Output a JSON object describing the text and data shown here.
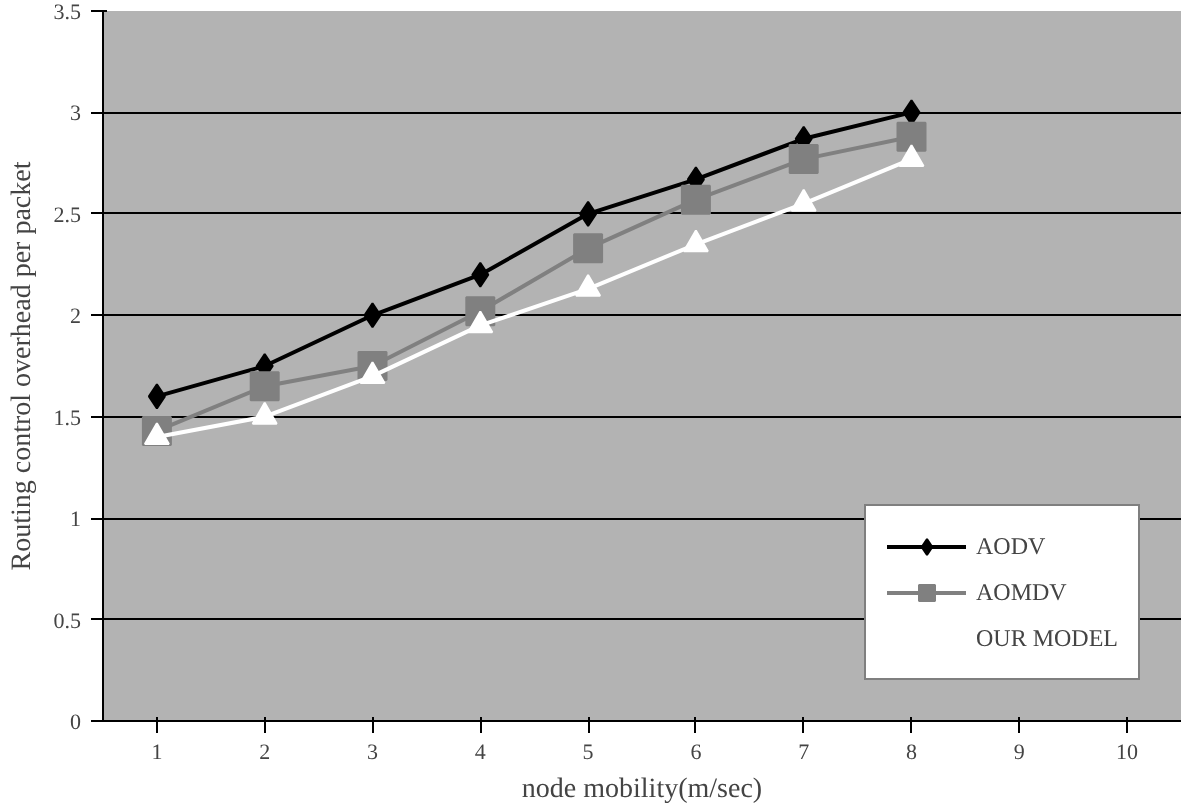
{
  "chart_data": {
    "type": "line",
    "xlabel": "node mobility(m/sec)",
    "ylabel": "Routing control overhead per packet",
    "categories": [
      "1",
      "2",
      "3",
      "4",
      "5",
      "6",
      "7",
      "8",
      "9",
      "10"
    ],
    "series": [
      {
        "name": "AODV",
        "color": "#000000",
        "marker": "diamond",
        "values": [
          1.6,
          1.75,
          2.0,
          2.2,
          2.5,
          2.67,
          2.87,
          3.0,
          null,
          null
        ]
      },
      {
        "name": "AOMDV",
        "color": "#808080",
        "marker": "square",
        "values": [
          1.43,
          1.65,
          1.75,
          2.02,
          2.33,
          2.57,
          2.77,
          2.88,
          null,
          null
        ]
      },
      {
        "name": "OUR MODEL",
        "color": "#ffffff",
        "marker": "triangle",
        "values": [
          1.4,
          1.5,
          1.7,
          1.95,
          2.13,
          2.35,
          2.55,
          2.77,
          null,
          null
        ]
      }
    ],
    "ylim": [
      0,
      3.5
    ],
    "yticks": [
      0,
      0.5,
      1,
      1.5,
      2,
      2.5,
      3,
      3.5
    ],
    "grid": "y",
    "legend": "bottom right",
    "line_style": "solid"
  }
}
